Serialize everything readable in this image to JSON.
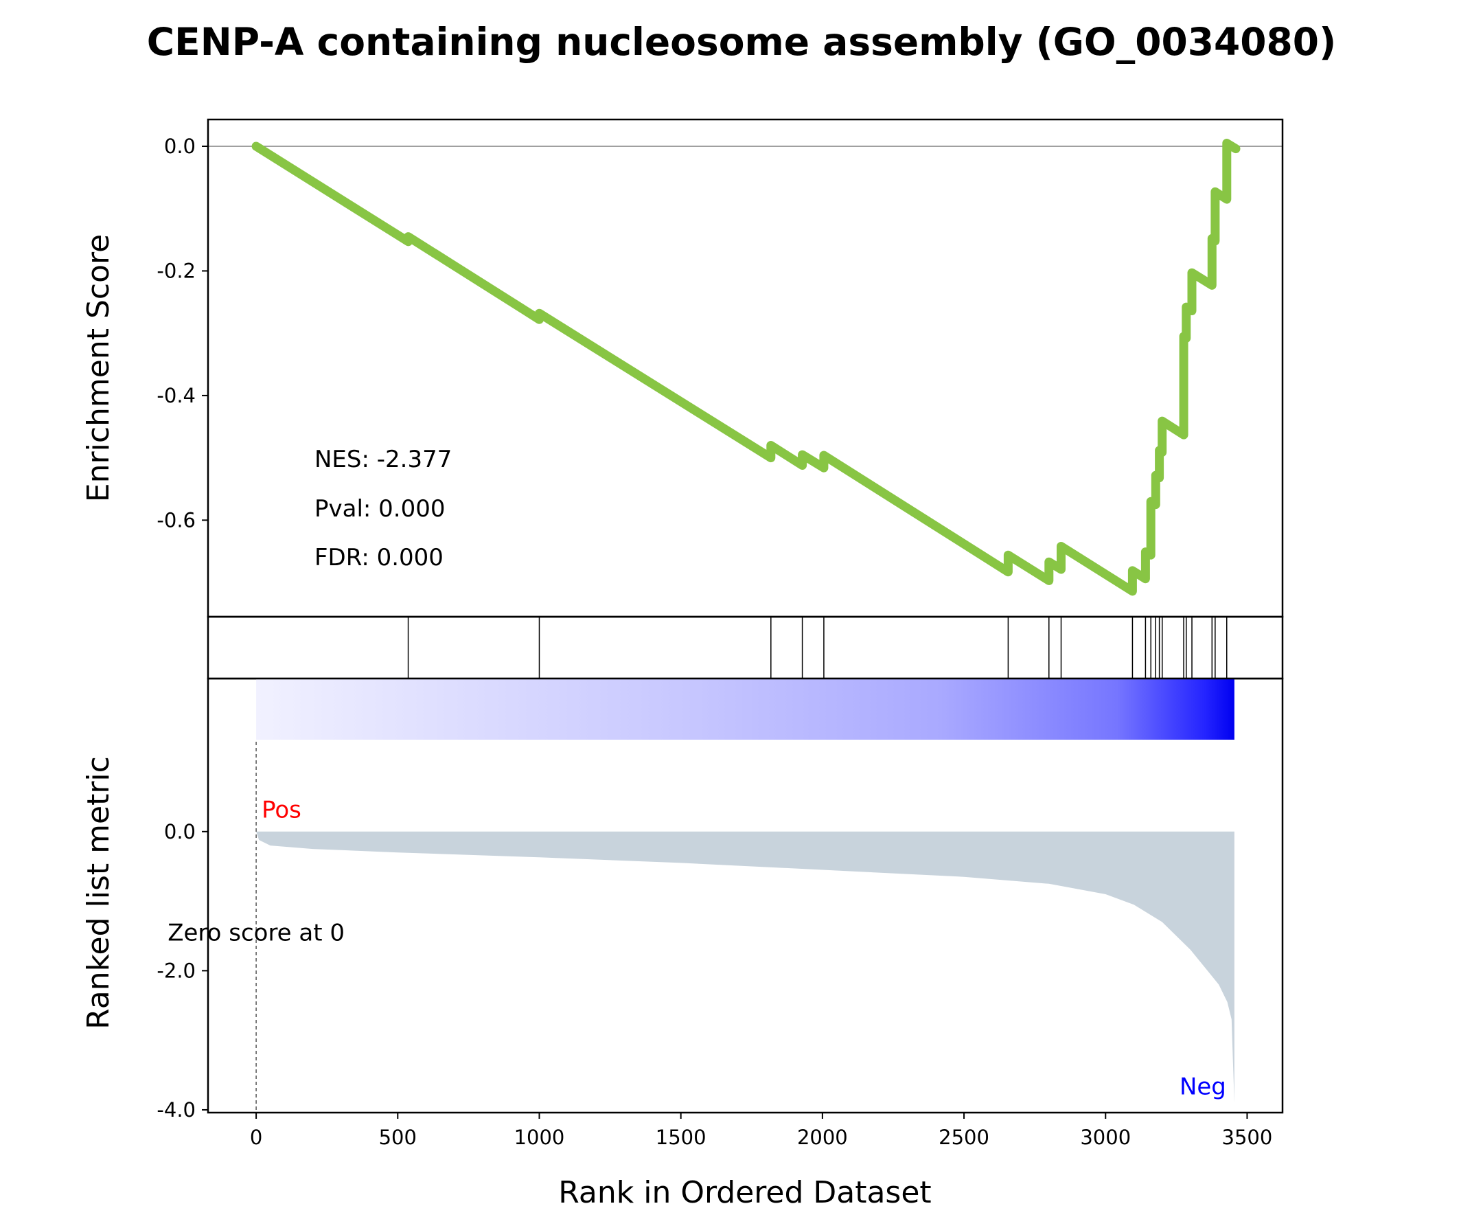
{
  "chart_data": {
    "type": "line",
    "title": "CENP-A containing nucleosome assembly (GO_0034080)",
    "xlabel": "Rank in Ordered Dataset",
    "xlim": [
      -170,
      3625
    ],
    "x_ticks": [
      "0",
      "500",
      "1000",
      "1500",
      "2000",
      "2500",
      "3000",
      "3500"
    ],
    "n_genes": 3455,
    "enrichment": {
      "ylabel": "Enrichment Score",
      "ylim": [
        -0.755,
        0.043
      ],
      "y_ticks": [
        "0.0",
        "-0.2",
        "-0.4",
        "-0.6"
      ],
      "line_color": "#88c544",
      "x": [
        0,
        537,
        537,
        1000,
        1000,
        1818,
        1818,
        1929,
        1929,
        2005,
        2005,
        2656,
        2656,
        2800,
        2800,
        2843,
        2843,
        3095,
        3095,
        3141,
        3141,
        3160,
        3160,
        3177,
        3177,
        3190,
        3190,
        3200,
        3200,
        3276,
        3276,
        3285,
        3285,
        3305,
        3305,
        3376,
        3376,
        3387,
        3387,
        3428,
        3428,
        3460
      ],
      "y": [
        0,
        -0.153,
        -0.145,
        -0.278,
        -0.268,
        -0.5,
        -0.48,
        -0.512,
        -0.495,
        -0.516,
        -0.496,
        -0.683,
        -0.656,
        -0.697,
        -0.667,
        -0.679,
        -0.642,
        -0.714,
        -0.681,
        -0.694,
        -0.651,
        -0.656,
        -0.57,
        -0.575,
        -0.528,
        -0.532,
        -0.488,
        -0.491,
        -0.441,
        -0.463,
        -0.305,
        -0.308,
        -0.258,
        -0.264,
        -0.203,
        -0.223,
        -0.148,
        -0.152,
        -0.073,
        -0.085,
        0.005,
        -0.004
      ],
      "stats": {
        "nes": "NES: -2.377",
        "pval": "Pval: 0.000",
        "fdr": "FDR: 0.000"
      }
    },
    "hits": [
      537,
      1000,
      1818,
      1929,
      2005,
      2656,
      2800,
      2843,
      3095,
      3141,
      3160,
      3177,
      3190,
      3200,
      3276,
      3285,
      3305,
      3376,
      3387,
      3428
    ],
    "ranked": {
      "ylabel": "Ranked list metric",
      "ylim": [
        -4.04,
        2.2
      ],
      "y_ticks": [
        "0.0",
        "-2.0",
        "-4.0"
      ],
      "fill_color": "#c8d3dc",
      "x": [
        0,
        10,
        50,
        200,
        500,
        1000,
        1500,
        2000,
        2500,
        2800,
        3000,
        3100,
        3200,
        3300,
        3350,
        3400,
        3430,
        3445,
        3450,
        3455
      ],
      "y": [
        0,
        -0.12,
        -0.2,
        -0.25,
        -0.3,
        -0.37,
        -0.45,
        -0.55,
        -0.65,
        -0.75,
        -0.9,
        -1.05,
        -1.3,
        -1.7,
        -1.95,
        -2.2,
        -2.45,
        -2.7,
        -3.3,
        -3.9
      ],
      "pos_label": "Pos",
      "neg_label": "Neg",
      "zero_text": "Zero score at 0",
      "zero_x": 0,
      "pos_color": "#ff0000",
      "neg_color": "#0000ff"
    }
  }
}
